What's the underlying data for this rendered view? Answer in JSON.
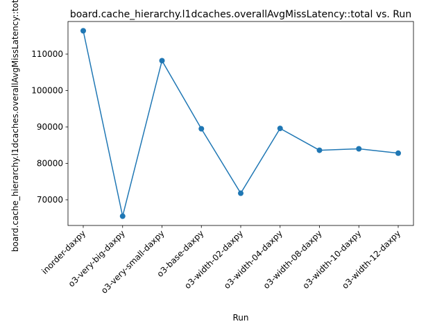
{
  "chart_data": {
    "type": "line",
    "title": "board.cache_hierarchy.l1dcaches.overallAvgMissLatency::total vs. Run",
    "xlabel": "Run",
    "ylabel": "board.cache_hierarchy.l1dcaches.overallAvgMissLatency::total",
    "categories": [
      "inorder-daxpy",
      "o3-very-big-daxpy",
      "o3-very-small-daxpy",
      "o3-base-daxpy",
      "o3-width-02-daxpy",
      "o3-width-04-daxpy",
      "o3-width-08-daxpy",
      "o3-width-10-daxpy",
      "o3-width-12-daxpy"
    ],
    "series": [
      {
        "values": [
          116400,
          65500,
          108200,
          89500,
          71800,
          89600,
          83600,
          84000,
          82800
        ],
        "color": "#1f77b4",
        "marker": "circle"
      }
    ],
    "yticks": [
      70000,
      80000,
      90000,
      100000,
      110000
    ],
    "ytick_labels": [
      "70000",
      "80000",
      "90000",
      "100000",
      "110000"
    ],
    "ylim": [
      62950,
      118950
    ],
    "grid": false,
    "legend": "none"
  }
}
